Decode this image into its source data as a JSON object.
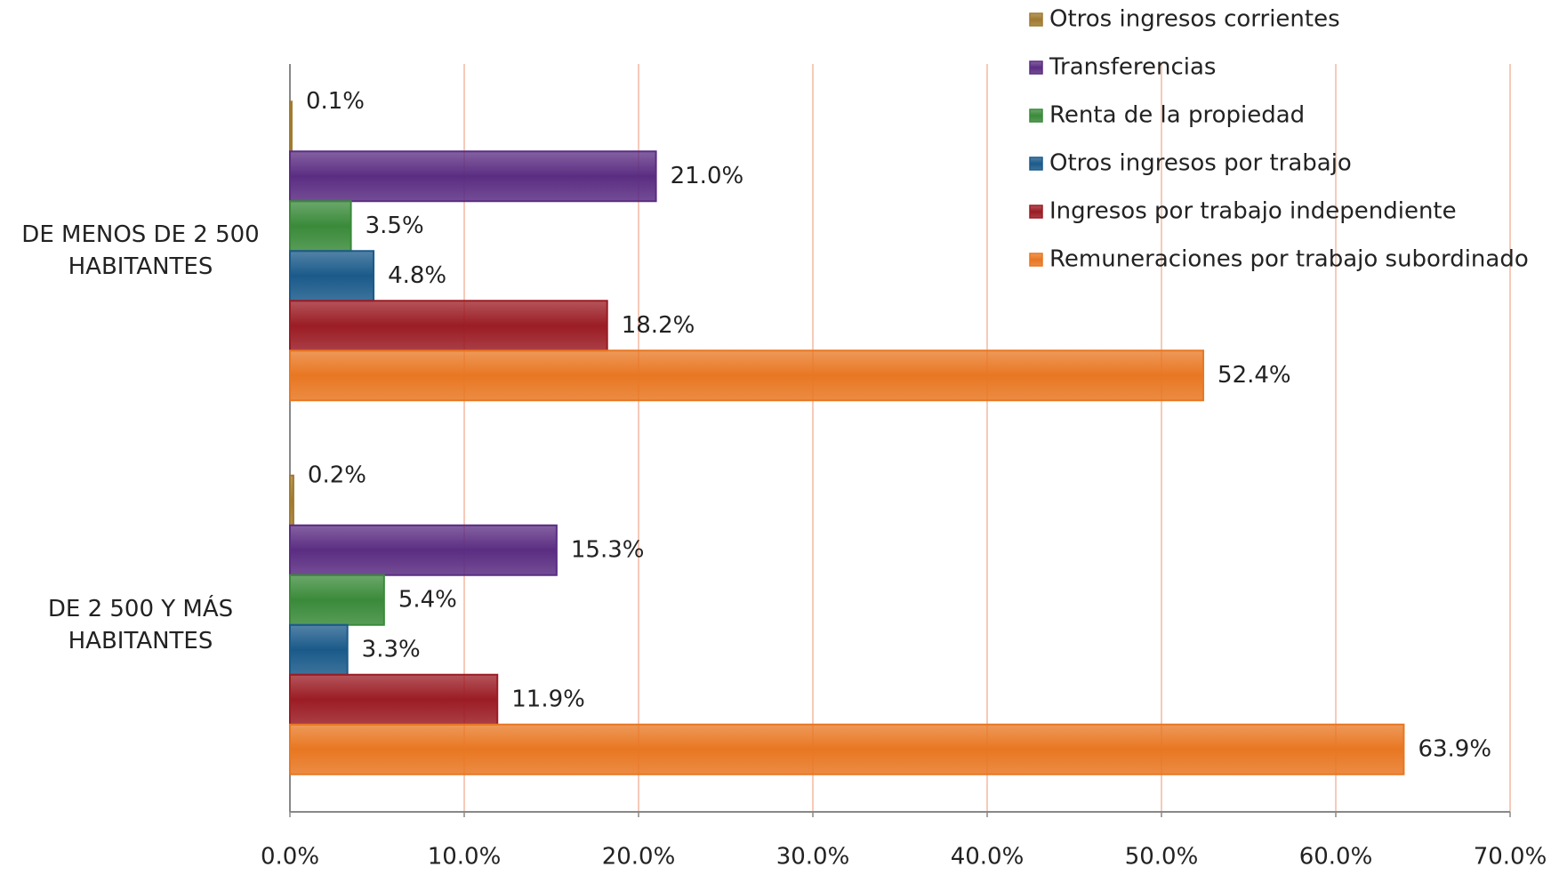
{
  "chart_data": {
    "type": "hbar",
    "categories": [
      "DE MENOS DE 2 500 HABITANTES",
      "DE 2 500 Y MÁS HABITANTES"
    ],
    "series": [
      {
        "name": "Otros ingresos corrientes",
        "color": "#a07a30",
        "values": [
          0.1,
          0.2
        ],
        "value_labels": [
          "0.1%",
          "0.2%"
        ]
      },
      {
        "name": "Transferencias",
        "color": "#5b2d82",
        "values": [
          21.0,
          15.3
        ],
        "value_labels": [
          "21.0%",
          "15.3%"
        ]
      },
      {
        "name": "Renta de la propiedad",
        "color": "#3a8a3a",
        "values": [
          3.5,
          5.4
        ],
        "value_labels": [
          "3.5%",
          "5.4%"
        ]
      },
      {
        "name": "Otros ingresos por trabajo",
        "color": "#1a5a8a",
        "values": [
          4.8,
          3.3
        ],
        "value_labels": [
          "4.8%",
          "3.3%"
        ]
      },
      {
        "name": "Ingresos por trabajo independiente",
        "color": "#9b1c24",
        "values": [
          18.2,
          11.9
        ],
        "value_labels": [
          "18.2%",
          "11.9%"
        ]
      },
      {
        "name": "Remuneraciones por trabajo subordinado",
        "color": "#e87722",
        "values": [
          52.4,
          63.9
        ],
        "value_labels": [
          "52.4%",
          "63.9%"
        ]
      }
    ],
    "xlim": [
      0,
      70
    ],
    "xticks": [
      {
        "value": 0,
        "label": "0.0%"
      },
      {
        "value": 10,
        "label": "10.0%"
      },
      {
        "value": 20,
        "label": "20.0%"
      },
      {
        "value": 30,
        "label": "30.0%"
      },
      {
        "value": 40,
        "label": "40.0%"
      },
      {
        "value": 50,
        "label": "50.0%"
      },
      {
        "value": 60,
        "label": "60.0%"
      },
      {
        "value": 70,
        "label": "70.0%"
      }
    ],
    "grid": true,
    "legend": "top-right"
  }
}
